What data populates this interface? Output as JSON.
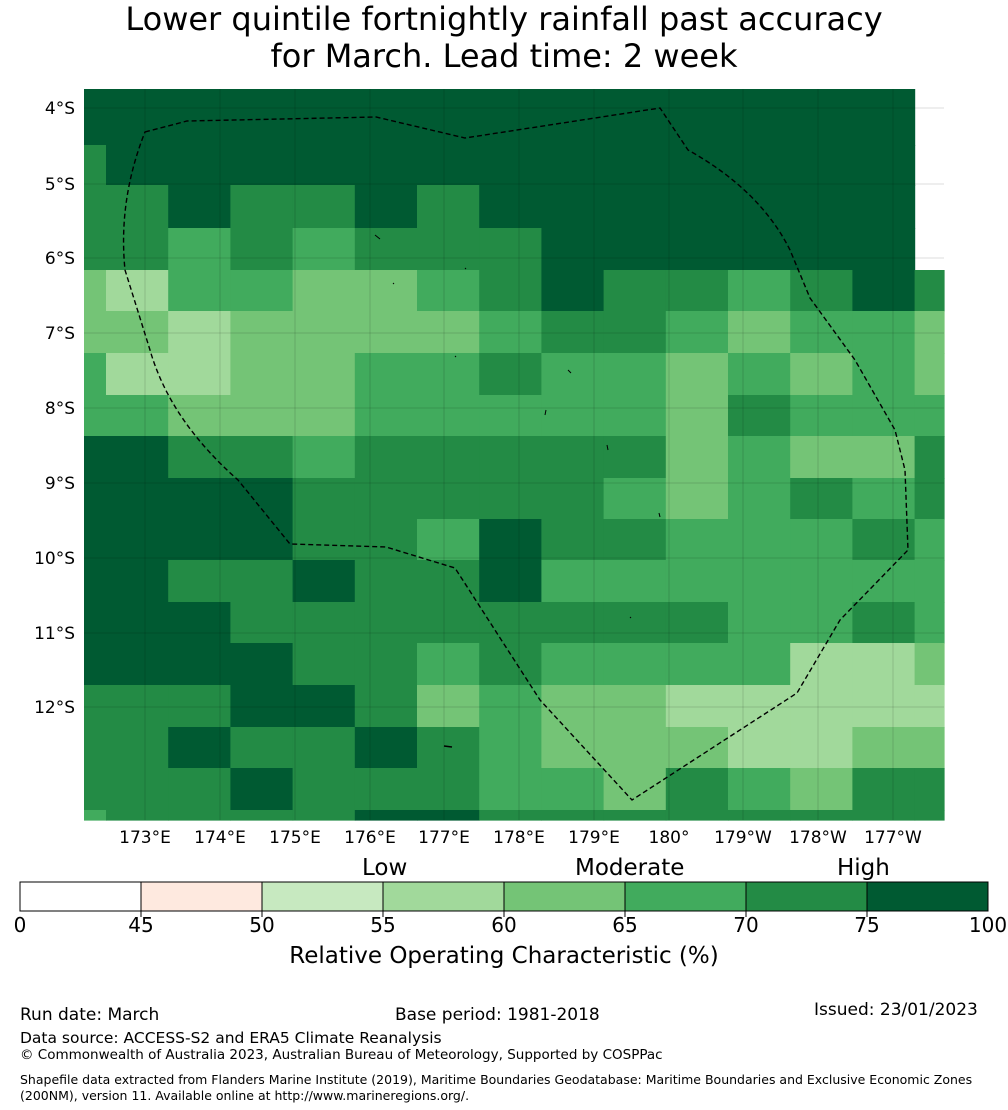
{
  "title_line1": "Lower quintile fortnightly rainfall past accuracy",
  "title_line2": "for March. Lead time: 2 week",
  "map": {
    "lon_labels": [
      "173°E",
      "174°E",
      "175°E",
      "176°E",
      "177°E",
      "178°E",
      "179°E",
      "180°",
      "179°W",
      "178°W",
      "177°W"
    ],
    "lat_labels": [
      "4°S",
      "5°S",
      "6°S",
      "7°S",
      "8°S",
      "9°S",
      "10°S",
      "11°S",
      "12°S"
    ],
    "grid_values": [
      [
        80,
        80,
        80,
        80,
        80,
        80,
        80,
        80,
        80,
        80,
        80,
        80,
        80,
        80
      ],
      [
        72,
        80,
        80,
        80,
        80,
        80,
        80,
        80,
        80,
        80,
        80,
        80,
        80,
        80
      ],
      [
        72,
        72,
        80,
        72,
        72,
        80,
        72,
        80,
        80,
        80,
        80,
        80,
        80,
        80
      ],
      [
        72,
        72,
        67,
        72,
        67,
        72,
        72,
        72,
        80,
        80,
        80,
        80,
        80,
        80
      ],
      [
        62,
        57,
        67,
        67,
        62,
        62,
        67,
        72,
        80,
        72,
        72,
        67,
        72,
        80,
        72
      ],
      [
        62,
        62,
        57,
        62,
        62,
        62,
        62,
        67,
        72,
        72,
        67,
        62,
        67,
        67,
        62
      ],
      [
        67,
        57,
        57,
        62,
        62,
        67,
        67,
        72,
        67,
        67,
        62,
        67,
        62,
        67,
        62
      ],
      [
        67,
        67,
        62,
        62,
        62,
        67,
        67,
        67,
        67,
        67,
        62,
        72,
        67,
        67,
        67
      ],
      [
        80,
        80,
        72,
        72,
        67,
        72,
        72,
        72,
        72,
        72,
        62,
        67,
        62,
        62,
        72
      ],
      [
        80,
        80,
        80,
        80,
        72,
        72,
        72,
        72,
        72,
        67,
        62,
        67,
        72,
        67,
        72
      ],
      [
        80,
        80,
        80,
        80,
        72,
        72,
        67,
        80,
        72,
        72,
        67,
        67,
        67,
        72,
        67
      ],
      [
        80,
        80,
        72,
        72,
        80,
        72,
        72,
        80,
        67,
        67,
        67,
        67,
        67,
        67,
        67
      ],
      [
        80,
        80,
        80,
        72,
        72,
        72,
        72,
        72,
        72,
        72,
        72,
        67,
        67,
        72,
        67
      ],
      [
        80,
        80,
        80,
        80,
        72,
        72,
        67,
        72,
        67,
        67,
        67,
        67,
        57,
        57,
        62
      ],
      [
        72,
        72,
        72,
        80,
        80,
        72,
        62,
        67,
        62,
        62,
        57,
        57,
        57,
        57,
        57
      ],
      [
        72,
        72,
        80,
        72,
        72,
        80,
        72,
        67,
        62,
        62,
        62,
        57,
        57,
        62,
        62
      ],
      [
        72,
        72,
        72,
        80,
        72,
        72,
        72,
        67,
        67,
        62,
        72,
        67,
        62,
        72,
        72
      ],
      [
        67,
        72,
        72,
        72,
        72,
        80,
        80,
        72,
        72,
        72,
        72,
        72,
        72,
        72,
        72
      ]
    ]
  },
  "colorbar": {
    "categories": [
      "Low",
      "Moderate",
      "High"
    ],
    "ticks": [
      "0",
      "45",
      "50",
      "55",
      "60",
      "65",
      "70",
      "75",
      "100"
    ],
    "colors": [
      "#ffffff",
      "#fee9df",
      "#c7e9c0",
      "#a1d99b",
      "#74c476",
      "#41ab5d",
      "#238b45",
      "#005a32"
    ],
    "label": "Relative Operating Characteristic (%)"
  },
  "footer": {
    "run_date": "Run date: March",
    "base_period": "Base period: 1981-2018",
    "issued": "Issued: 23/01/2023",
    "data_source": "Data source: ACCESS-S2 and ERA5 Climate Reanalysis",
    "copyright": "© Commonwealth of Australia 2023, Australian Bureau of Meteorology, Supported by COSPPac",
    "shapefile": "Shapefile data extracted from Flanders Marine Institute (2019), Maritime Boundaries Geodatabase: Maritime Boundaries and Exclusive Economic Zones (200NM), version 11. Available online at http://www.marineregions.org/."
  }
}
